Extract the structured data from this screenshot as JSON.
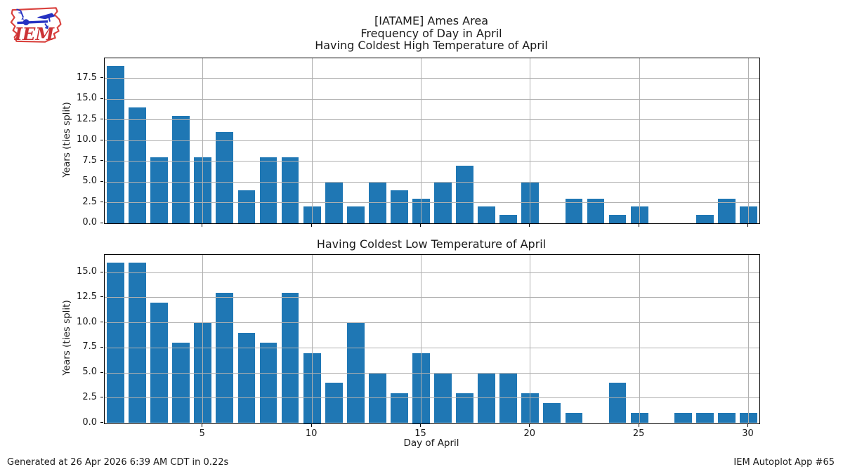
{
  "logo": {
    "text": "IEM"
  },
  "header": {
    "line1": "[IATAME] Ames Area",
    "line2": "Frequency of Day in April",
    "line3": "Having Coldest High Temperature of April"
  },
  "footer": {
    "generated": "Generated at 26 Apr 2026 6:39 AM CDT in 0.22s",
    "app": "IEM Autoplot App #65"
  },
  "colors": {
    "bar": "#1f77b4",
    "grid": "#b0b0b0",
    "spine": "#000000",
    "text": "#1a1a1a",
    "logo_red": "#d9413d",
    "logo_blue": "#2632c2"
  },
  "chart_data": [
    {
      "type": "bar",
      "title": "Having Coldest High Temperature of April",
      "x": [
        1,
        2,
        3,
        4,
        5,
        6,
        7,
        8,
        9,
        10,
        11,
        12,
        13,
        14,
        15,
        16,
        17,
        18,
        19,
        20,
        21,
        22,
        23,
        24,
        25,
        26,
        27,
        28,
        29,
        30
      ],
      "values": [
        19,
        14,
        8,
        13,
        8,
        11,
        4,
        8,
        8,
        2,
        5,
        2,
        5,
        4,
        3,
        5,
        7,
        2,
        1,
        5,
        0,
        3,
        3,
        1,
        2,
        0,
        0,
        1,
        3,
        2
      ],
      "xlabel": "",
      "ylabel": "Years (ties split)",
      "xlim": [
        0.5,
        30.5
      ],
      "ylim": [
        0,
        19.95
      ],
      "yticks": [
        "0.0",
        "2.5",
        "5.0",
        "7.5",
        "10.0",
        "12.5",
        "15.0",
        "17.5"
      ],
      "xticks": [
        5,
        10,
        15,
        20,
        25,
        30
      ],
      "show_xtick_labels": false,
      "grid": true,
      "bar_width": 0.8,
      "legend": "none"
    },
    {
      "type": "bar",
      "title": "Having Coldest Low Temperature of April",
      "x": [
        1,
        2,
        3,
        4,
        5,
        6,
        7,
        8,
        9,
        10,
        11,
        12,
        13,
        14,
        15,
        16,
        17,
        18,
        19,
        20,
        21,
        22,
        23,
        24,
        25,
        26,
        27,
        28,
        29,
        30
      ],
      "values": [
        16,
        16,
        12,
        8,
        10,
        13,
        9,
        8,
        13,
        7,
        4,
        10,
        5,
        3,
        7,
        5,
        3,
        5,
        5,
        3,
        2,
        1,
        0,
        4,
        1,
        0,
        1,
        1,
        1,
        1
      ],
      "xlabel": "Day of April",
      "ylabel": "Years (ties split)",
      "xlim": [
        0.5,
        30.5
      ],
      "ylim": [
        0,
        16.8
      ],
      "yticks": [
        "0.0",
        "2.5",
        "5.0",
        "7.5",
        "10.0",
        "12.5",
        "15.0"
      ],
      "xticks": [
        5,
        10,
        15,
        20,
        25,
        30
      ],
      "show_xtick_labels": true,
      "grid": true,
      "bar_width": 0.8,
      "legend": "none"
    }
  ]
}
